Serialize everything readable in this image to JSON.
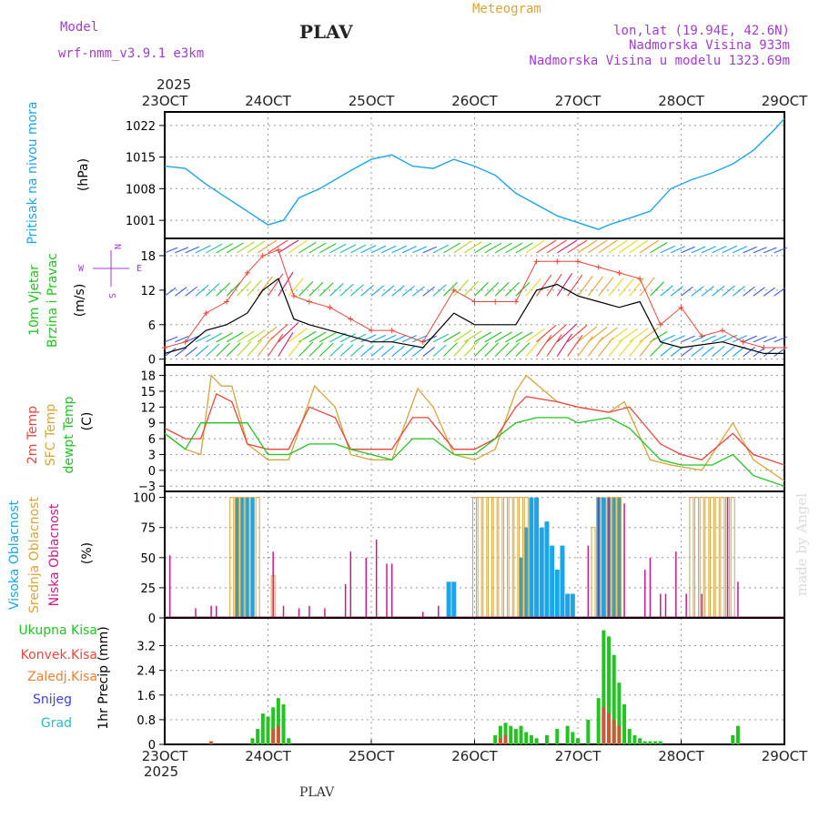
{
  "header": {
    "model_label": "Model",
    "model_name": "wrf-nmm_v3.9.1  e3km",
    "station": "PLAV",
    "meteogram": "Meteogram",
    "lonlat": "lon,lat (19.94E, 42.6N)",
    "altitude": "Nadmorska Visina 933m",
    "model_altitude": "Nadmorska Visina u modelu 1323.69m",
    "year_top": "2025",
    "year_bottom": "2025",
    "footer_station": "PLAV",
    "credit": "made by Angel"
  },
  "colors": {
    "pressure": "#1aa6e8",
    "wind_speed": "#000000",
    "gust": "#e8463c",
    "t2m": "#e8463c",
    "tsfc": "#d9a43a",
    "dew": "#21c421",
    "high_cloud": "#1aa6e8",
    "mid_cloud": "#d9a43a",
    "low_cloud": "#c81b8a",
    "precip_total": "#21c421",
    "precip_conv": "#e8463c",
    "purple": "#a23bd1",
    "orange": "#f08030",
    "snow": "#4040e0",
    "grad": "#20c0c0"
  },
  "chart_data": [
    {
      "type": "line",
      "id": "pressure",
      "x_ticks": [
        "23OCT",
        "24OCT",
        "25OCT",
        "26OCT",
        "27OCT",
        "28OCT",
        "29OCT"
      ],
      "ylabel": "(hPa)",
      "side_label": "Pritisak na nivou mora",
      "ylim": [
        997,
        1025
      ],
      "y_ticks": [
        1001,
        1008,
        1015,
        1022
      ],
      "series": [
        {
          "name": "Pritisak",
          "x": [
            23.0,
            23.2,
            23.4,
            23.6,
            23.8,
            24.0,
            24.15,
            24.3,
            24.5,
            24.8,
            25.0,
            25.2,
            25.4,
            25.6,
            25.8,
            26.0,
            26.2,
            26.4,
            26.6,
            26.8,
            27.0,
            27.2,
            27.3,
            27.5,
            27.7,
            27.9,
            28.1,
            28.3,
            28.5,
            28.7,
            28.9,
            29.0
          ],
          "values": [
            1013,
            1012.5,
            1009,
            1006,
            1003,
            1000,
            1001,
            1006,
            1008,
            1012,
            1014.5,
            1015.5,
            1013,
            1012.5,
            1014.5,
            1013,
            1011,
            1007,
            1004.5,
            1002,
            1000.5,
            999,
            1000,
            1001.5,
            1003,
            1008,
            1010,
            1011.5,
            1013.5,
            1016.5,
            1021,
            1023.5
          ]
        }
      ]
    },
    {
      "type": "line",
      "id": "wind",
      "ylabel": "(m/s)",
      "side_label_1": "10m Vjetar",
      "side_label_2": "Brzina i Pravac",
      "compass_n": "N",
      "compass_s": "S",
      "compass_w": "W",
      "compass_e": "E",
      "ylim": [
        -1,
        21
      ],
      "y_ticks": [
        0,
        6,
        12,
        18
      ],
      "series": [
        {
          "name": "Brzina",
          "x": [
            23.0,
            23.2,
            23.4,
            23.6,
            23.8,
            23.95,
            24.1,
            24.25,
            24.4,
            24.6,
            24.8,
            25.0,
            25.2,
            25.5,
            25.8,
            26.0,
            26.2,
            26.4,
            26.6,
            26.8,
            27.0,
            27.2,
            27.4,
            27.6,
            27.8,
            28.0,
            28.2,
            28.4,
            28.6,
            28.8,
            29.0
          ],
          "values": [
            1,
            2,
            5,
            6,
            8,
            12,
            14,
            7,
            6,
            5,
            4,
            3,
            3,
            2,
            8,
            6,
            6,
            6,
            12,
            13,
            11,
            10,
            9,
            10,
            3,
            2,
            2.5,
            3,
            2,
            1,
            1
          ]
        },
        {
          "name": "Udari",
          "x": [
            23.0,
            23.2,
            23.4,
            23.6,
            23.8,
            23.95,
            24.1,
            24.25,
            24.4,
            24.6,
            24.8,
            25.0,
            25.2,
            25.5,
            25.8,
            26.0,
            26.2,
            26.4,
            26.6,
            26.8,
            27.0,
            27.2,
            27.4,
            27.6,
            27.8,
            28.0,
            28.2,
            28.4,
            28.6,
            28.8,
            29.0
          ],
          "values": [
            2,
            3,
            8,
            10,
            15,
            18,
            19,
            11,
            10,
            9,
            7,
            5,
            5,
            3,
            12,
            10,
            10,
            10,
            17,
            17,
            17,
            16,
            15,
            14,
            6,
            9,
            4,
            5,
            3,
            2,
            2
          ]
        }
      ]
    },
    {
      "type": "line",
      "id": "temperature",
      "ylabel": "(C)",
      "side_label_1": "2m Temp",
      "side_label_2": "SFC Temp",
      "side_label_3": "dewpt Temp",
      "ylim": [
        -4,
        20
      ],
      "y_ticks": [
        -3,
        0,
        3,
        6,
        9,
        12,
        15,
        18
      ],
      "series": [
        {
          "name": "2m Temp",
          "x": [
            23.0,
            23.2,
            23.35,
            23.5,
            23.65,
            23.8,
            24.0,
            24.2,
            24.4,
            24.65,
            24.8,
            25.0,
            25.2,
            25.4,
            25.55,
            25.8,
            26.0,
            26.2,
            26.4,
            26.5,
            26.8,
            27.0,
            27.3,
            27.5,
            27.8,
            28.0,
            28.2,
            28.5,
            28.7,
            29.0
          ],
          "values": [
            8,
            6,
            6,
            14.5,
            13,
            5,
            4,
            4,
            12,
            10,
            4,
            4,
            4,
            10,
            10,
            4,
            4,
            6,
            12,
            14,
            13,
            12,
            11,
            12,
            5,
            3,
            2,
            7,
            3,
            1
          ]
        },
        {
          "name": "SFC Temp",
          "x": [
            23.0,
            23.2,
            23.35,
            23.45,
            23.55,
            23.65,
            23.8,
            24.0,
            24.2,
            24.45,
            24.65,
            24.8,
            25.0,
            25.2,
            25.45,
            25.6,
            25.8,
            26.0,
            26.2,
            26.4,
            26.5,
            26.8,
            27.0,
            27.3,
            27.45,
            27.7,
            27.9,
            28.2,
            28.5,
            28.7,
            29.0
          ],
          "values": [
            7,
            4,
            3,
            18,
            16,
            16,
            5,
            2,
            2,
            16,
            12,
            3,
            2,
            2,
            15.5,
            12,
            3,
            2,
            4,
            15,
            18,
            13,
            12,
            11,
            13,
            2,
            1,
            0,
            9,
            2,
            -2
          ]
        },
        {
          "name": "dewpt Temp",
          "x": [
            23.0,
            23.2,
            23.35,
            23.5,
            23.8,
            24.0,
            24.2,
            24.4,
            24.65,
            24.8,
            25.0,
            25.2,
            25.4,
            25.6,
            25.8,
            26.0,
            26.2,
            26.4,
            26.6,
            26.9,
            27.0,
            27.3,
            27.5,
            27.8,
            28.0,
            28.3,
            28.5,
            28.7,
            29.0
          ],
          "values": [
            7,
            4,
            9,
            9,
            9,
            3,
            3,
            5,
            5,
            4,
            3,
            2,
            6,
            6,
            3,
            3,
            6,
            9,
            10,
            10,
            9,
            10,
            8,
            2,
            1,
            1,
            3,
            -1,
            -3
          ]
        }
      ]
    },
    {
      "type": "bar",
      "id": "cloud",
      "ylabel": "(%)",
      "side_label_1": "Visoka Oblacnost",
      "side_label_2": "Srednja Oblacnost",
      "side_label_3": "Niska Oblacnost",
      "ylim": [
        0,
        105
      ],
      "y_ticks": [
        0,
        25,
        50,
        75,
        100
      ],
      "series": [
        {
          "name": "Visoka",
          "x": [
            23.7,
            23.75,
            23.8,
            23.85,
            25.75,
            25.8,
            26.45,
            26.5,
            26.55,
            26.6,
            26.65,
            26.7,
            26.75,
            26.8,
            26.85,
            26.9,
            26.95,
            27.2,
            27.25,
            27.3,
            27.35,
            27.4
          ],
          "values": [
            100,
            100,
            100,
            100,
            30,
            30,
            50,
            75,
            100,
            100,
            75,
            80,
            60,
            40,
            60,
            20,
            20,
            100,
            100,
            100,
            100,
            100
          ]
        },
        {
          "name": "Srednja",
          "x": [
            23.65,
            23.7,
            23.75,
            23.8,
            23.85,
            23.9,
            24.05,
            26.0,
            26.05,
            26.1,
            26.15,
            26.2,
            26.25,
            26.3,
            26.35,
            26.4,
            26.45,
            26.5,
            27.15,
            27.2,
            27.3,
            27.35,
            27.4,
            28.1,
            28.15,
            28.2,
            28.25,
            28.3,
            28.35,
            28.4,
            28.45,
            28.5
          ],
          "values": [
            100,
            100,
            100,
            100,
            100,
            100,
            35,
            100,
            100,
            100,
            100,
            100,
            100,
            100,
            100,
            100,
            100,
            100,
            75,
            100,
            100,
            100,
            100,
            100,
            100,
            100,
            100,
            100,
            100,
            100,
            100,
            100
          ]
        },
        {
          "name": "Niska",
          "x": [
            23.05,
            23.3,
            23.45,
            23.5,
            24.05,
            24.15,
            24.3,
            24.4,
            24.55,
            24.75,
            24.8,
            24.95,
            25.05,
            25.15,
            25.2,
            25.5,
            25.65,
            27.1,
            27.2,
            27.3,
            27.45,
            27.65,
            27.7,
            27.8,
            27.85,
            27.95,
            28.05,
            28.2,
            28.45,
            28.55
          ],
          "values": [
            52,
            8,
            10,
            10,
            55,
            10,
            8,
            10,
            8,
            28,
            55,
            50,
            65,
            45,
            45,
            5,
            10,
            60,
            100,
            100,
            95,
            40,
            50,
            20,
            20,
            55,
            20,
            20,
            100,
            30
          ]
        }
      ]
    },
    {
      "type": "bar",
      "id": "precip",
      "ylabel": "1hr Precip (mm)",
      "legend": [
        "Ukupna Kisa",
        "Konvek.Kisa",
        "Zaledj.Kisa",
        "Snijeg",
        "Grad"
      ],
      "ylim": [
        0,
        4.1
      ],
      "y_ticks": [
        0,
        0.8,
        1.6,
        2.4,
        3.2
      ],
      "y_tick_labels": [
        "0",
        "0.8",
        "1.6",
        "2.4",
        "3.2"
      ],
      "series": [
        {
          "name": "Ukupna Kisa",
          "x": [
            23.45,
            23.85,
            23.9,
            23.95,
            24.0,
            24.05,
            24.1,
            24.15,
            24.2,
            26.2,
            26.25,
            26.3,
            26.35,
            26.4,
            26.45,
            26.5,
            26.55,
            26.6,
            26.7,
            26.8,
            26.9,
            26.95,
            27.0,
            27.1,
            27.2,
            27.25,
            27.3,
            27.35,
            27.4,
            27.45,
            27.5,
            27.55,
            27.6,
            27.65,
            27.7,
            27.75,
            27.8,
            28.5,
            28.55
          ],
          "values": [
            0.1,
            0.2,
            0.5,
            1.0,
            0.9,
            1.2,
            1.5,
            1.3,
            0.2,
            0.3,
            0.6,
            0.7,
            0.6,
            0.5,
            0.6,
            0.4,
            0.3,
            0.2,
            0.3,
            0.5,
            0.6,
            0.4,
            0.2,
            0.8,
            1.5,
            3.7,
            3.5,
            2.9,
            2.0,
            1.3,
            0.5,
            0.3,
            0.2,
            0.1,
            0.1,
            0.1,
            0.1,
            0.3,
            0.6
          ]
        },
        {
          "name": "Konvek.Kisa",
          "x": [
            23.45,
            24.05,
            24.1,
            26.25,
            26.3,
            27.25,
            27.3,
            27.35,
            27.4
          ],
          "values": [
            0.1,
            0.5,
            0.6,
            0.2,
            0.3,
            1.2,
            1.0,
            0.8,
            0.6
          ]
        }
      ]
    }
  ]
}
